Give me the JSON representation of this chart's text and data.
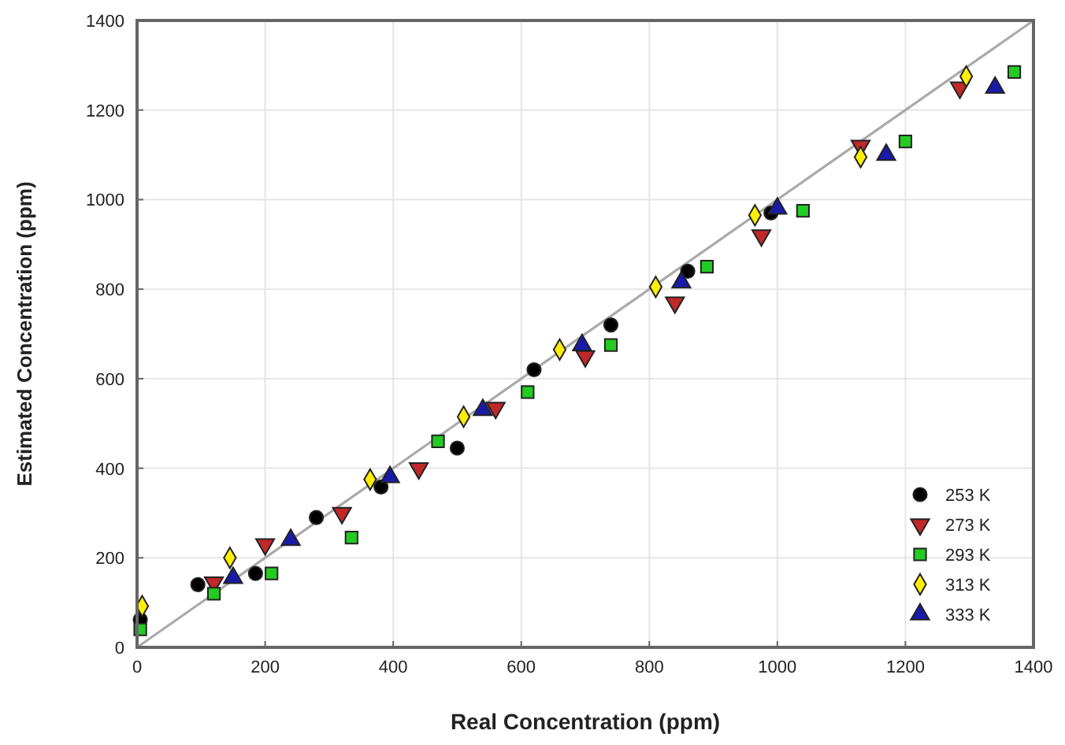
{
  "chart_data": {
    "type": "scatter",
    "xlabel": "Real Concentration (ppm)",
    "ylabel": "Estimated Concentration (ppm)",
    "xlim": [
      0,
      1400
    ],
    "ylim": [
      0,
      1400
    ],
    "xticks": [
      0,
      200,
      400,
      600,
      800,
      1000,
      1200,
      1400
    ],
    "yticks": [
      0,
      200,
      400,
      600,
      800,
      1000,
      1200,
      1400
    ],
    "grid": true,
    "legend": "bottom right",
    "series": [
      {
        "name": "253 K",
        "color": "#000000",
        "marker": "circle",
        "x": [
          5,
          95,
          185,
          280,
          381,
          500,
          620,
          740,
          860,
          990
        ],
        "values": [
          62,
          140,
          165,
          290,
          358,
          445,
          620,
          720,
          840,
          970
        ]
      },
      {
        "name": "273 K",
        "color": "#c0282a",
        "marker": "triangle-down",
        "x": [
          120,
          200,
          320,
          440,
          560,
          700,
          840,
          975,
          1130,
          1285
        ],
        "values": [
          145,
          230,
          300,
          400,
          535,
          650,
          770,
          920,
          1120,
          1250
        ]
      },
      {
        "name": "293 K",
        "color": "#22cc22",
        "marker": "square",
        "x": [
          5,
          120,
          210,
          335,
          470,
          610,
          740,
          890,
          1040,
          1200,
          1370
        ],
        "values": [
          40,
          120,
          165,
          245,
          460,
          570,
          675,
          850,
          975,
          1130,
          1285
        ]
      },
      {
        "name": "313 K",
        "color": "#ffee00",
        "marker": "diamond",
        "x": [
          8,
          145,
          364,
          510,
          660,
          810,
          965,
          1130,
          1295
        ],
        "values": [
          92,
          200,
          375,
          515,
          665,
          805,
          965,
          1095,
          1275
        ]
      },
      {
        "name": "333 K",
        "color": "#1a1aa8",
        "marker": "triangle",
        "x": [
          150,
          240,
          395,
          540,
          695,
          850,
          1000,
          1170,
          1340
        ],
        "values": [
          155,
          240,
          380,
          530,
          675,
          815,
          980,
          1100,
          1250
        ]
      },
      {
        "type": "line",
        "color": "#aaaaaa",
        "x": [
          0,
          1400
        ],
        "values": [
          0,
          1400
        ]
      }
    ]
  }
}
